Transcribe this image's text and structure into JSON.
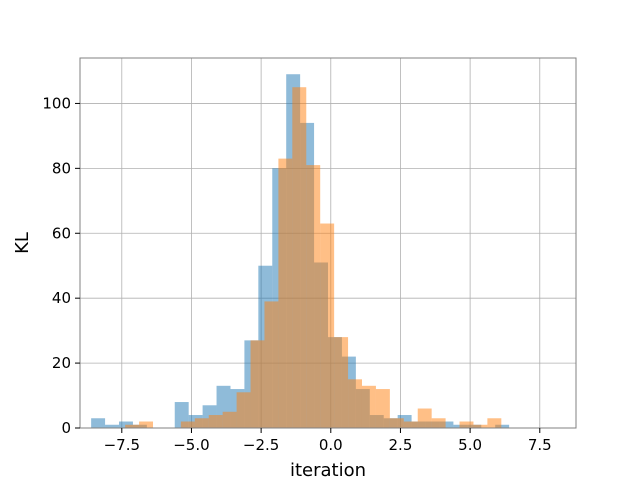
{
  "chart_data": {
    "type": "histogram",
    "title": "",
    "xlabel": "iteration",
    "ylabel": "KL",
    "xlim": [
      -9.0,
      8.8
    ],
    "ylim": [
      0,
      114
    ],
    "x_ticks": [
      -7.5,
      -5.0,
      -2.5,
      0.0,
      2.5,
      5.0,
      7.5
    ],
    "x_tick_labels": [
      "−7.5",
      "−5.0",
      "−2.5",
      "0.0",
      "2.5",
      "5.0",
      "7.5"
    ],
    "y_ticks": [
      0,
      20,
      40,
      60,
      80,
      100
    ],
    "y_tick_labels": [
      "0",
      "20",
      "40",
      "60",
      "80",
      "100"
    ],
    "grid": true,
    "legend": "none",
    "series": [
      {
        "color": "#1f77b4",
        "alpha": 0.5,
        "bin_start": -8.6,
        "bin_width": 0.5,
        "counts": [
          3,
          1,
          2,
          1,
          0,
          0,
          8,
          4,
          7,
          13,
          12,
          27,
          50,
          80,
          109,
          94,
          51,
          28,
          22,
          12,
          4,
          3,
          4,
          2,
          2,
          2,
          1,
          1,
          0,
          1
        ]
      },
      {
        "color": "#ff7f0e",
        "alpha": 0.5,
        "bin_start": -7.38,
        "bin_width": 0.5,
        "counts": [
          1,
          2,
          0,
          0,
          2,
          3,
          4,
          5,
          11,
          27,
          39,
          83,
          105,
          81,
          63,
          28,
          15,
          13,
          12,
          3,
          2,
          6,
          3,
          0,
          2,
          1,
          3
        ]
      }
    ]
  }
}
